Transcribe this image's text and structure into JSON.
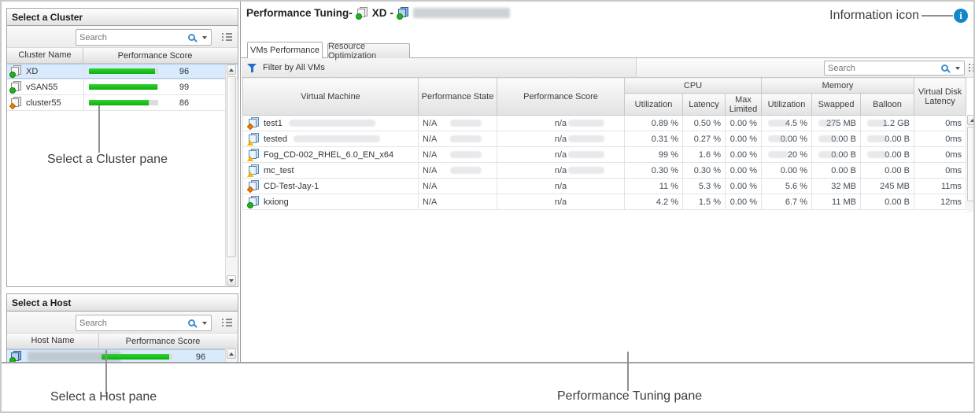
{
  "cluster_panel": {
    "title": "Select a Cluster",
    "search_placeholder": "Search",
    "columns": [
      "Cluster Name",
      "Performance Score"
    ],
    "rows": [
      {
        "name": "XD",
        "status": "green",
        "score": 96,
        "selected": true
      },
      {
        "name": "vSAN55",
        "status": "green",
        "score": 99,
        "selected": false
      },
      {
        "name": "cluster55",
        "status": "orange",
        "score": 86,
        "selected": false
      }
    ]
  },
  "host_panel": {
    "title": "Select a Host",
    "search_placeholder": "Search",
    "columns": [
      "Host Name",
      "Performance Score"
    ],
    "rows": [
      {
        "name": "",
        "redacted": true,
        "status": "green",
        "score": 96,
        "selected": true
      }
    ]
  },
  "main": {
    "title": "Performance Tuning-",
    "cluster_label": "XD",
    "dash": "-",
    "host_redacted": true,
    "tabs": [
      {
        "label": "VMs Performance",
        "active": true
      },
      {
        "label": "Resource Optimization",
        "active": false
      }
    ],
    "filter_label": "Filter by All VMs",
    "search_placeholder": "Search",
    "table": {
      "headers": {
        "vm": "Virtual Machine",
        "state": "Performance State",
        "score": "Performance Score",
        "cpu": "CPU",
        "memory": "Memory",
        "cpu_util": "Utilization",
        "cpu_latency": "Latency",
        "max_limited": "Max Limited",
        "mem_util": "Utilization",
        "swapped": "Swapped",
        "balloon": "Balloon",
        "vdl": "Virtual Disk Latency"
      },
      "rows": [
        {
          "vm": "test1",
          "status": "orange",
          "state": "N/A",
          "score": "n/a",
          "cpu_util": "0.89 %",
          "cpu_latency": "0.50 %",
          "max_limited": "0.00 %",
          "mem_util": "4.5 %",
          "swapped": "275 MB",
          "balloon": "1.2 GB",
          "disk_latency": "0ms",
          "smudges": [
            "vm",
            "state",
            "score",
            "mem"
          ]
        },
        {
          "vm": "tested",
          "status": "warn",
          "state": "N/A",
          "score": "n/a",
          "cpu_util": "0.31 %",
          "cpu_latency": "0.27 %",
          "max_limited": "0.00 %",
          "mem_util": "0.00 %",
          "swapped": "0.00 B",
          "balloon": "0.00 B",
          "disk_latency": "0ms",
          "smudges": [
            "vm",
            "state",
            "score",
            "mem"
          ]
        },
        {
          "vm": "Fog_CD-002_RHEL_6.0_EN_x64",
          "status": "warn",
          "state": "N/A",
          "score": "n/a",
          "cpu_util": "99 %",
          "cpu_latency": "1.6 %",
          "max_limited": "0.00 %",
          "mem_util": "20 %",
          "swapped": "0.00 B",
          "balloon": "0.00 B",
          "disk_latency": "0ms",
          "smudges": [
            "state",
            "score",
            "mem"
          ]
        },
        {
          "vm": "mc_test",
          "status": "warn",
          "state": "N/A",
          "score": "n/a",
          "cpu_util": "0.30 %",
          "cpu_latency": "0.30 %",
          "max_limited": "0.00 %",
          "mem_util": "0.00 %",
          "swapped": "0.00 B",
          "balloon": "0.00 B",
          "disk_latency": "0ms",
          "smudges": [
            "state",
            "score"
          ]
        },
        {
          "vm": "CD-Test-Jay-1",
          "status": "orange",
          "state": "N/A",
          "score": "n/a",
          "cpu_util": "11 %",
          "cpu_latency": "5.3 %",
          "max_limited": "0.00 %",
          "mem_util": "5.6 %",
          "swapped": "32 MB",
          "balloon": "245 MB",
          "disk_latency": "11ms",
          "smudges": []
        },
        {
          "vm": "kxiong",
          "status": "green",
          "state": "N/A",
          "score": "n/a",
          "cpu_util": "4.2 %",
          "cpu_latency": "1.5 %",
          "max_limited": "0.00 %",
          "mem_util": "6.7 %",
          "swapped": "11 MB",
          "balloon": "0.00 B",
          "disk_latency": "12ms",
          "smudges": []
        }
      ]
    }
  },
  "annotations": {
    "cluster": "Select a Cluster pane",
    "host": "Select a Host pane",
    "tuning": "Performance Tuning pane",
    "info": "Information icon",
    "info_glyph": "i"
  },
  "colors": {
    "score_bar_green": "#15c715",
    "status_green": "#1db51d",
    "status_orange": "#f07d00",
    "status_warn_yellow": "#f2b800",
    "info_blue": "#1187ca",
    "filter_funnel_blue": "#1d6fd1",
    "selection_blue": "#d9eafc"
  }
}
